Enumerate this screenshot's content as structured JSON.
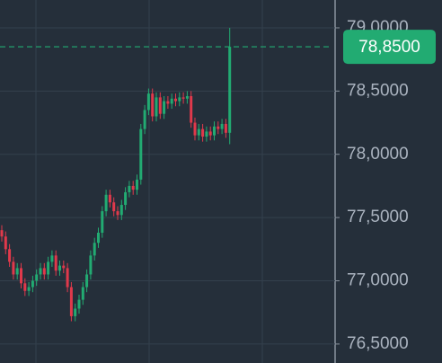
{
  "chart_data": {
    "type": "candlestick",
    "up_color": "#22ab72",
    "down_color": "#e0394b",
    "grid": true,
    "ylim": [
      76.35,
      79.22
    ],
    "yticks": [
      {
        "value": 79.0,
        "label": "79,0000"
      },
      {
        "value": 78.5,
        "label": "78,5000"
      },
      {
        "value": 78.0,
        "label": "78,0000"
      },
      {
        "value": 77.5,
        "label": "77,5000"
      },
      {
        "value": 77.0,
        "label": "77,0000"
      },
      {
        "value": 76.5,
        "label": "76,5000"
      }
    ],
    "last_price": {
      "value": 78.85,
      "label": "78,8500"
    },
    "open": [
      77.4,
      77.35,
      77.25,
      77.15,
      77.05,
      77.1,
      76.98,
      76.92,
      76.95,
      77.0,
      77.05,
      77.1,
      77.05,
      77.15,
      77.2,
      77.08,
      77.12,
      77.1,
      76.95,
      76.72,
      76.78,
      76.85,
      76.95,
      77.05,
      77.2,
      77.3,
      77.38,
      77.55,
      77.68,
      77.62,
      77.55,
      77.52,
      77.6,
      77.7,
      77.75,
      77.72,
      77.8,
      78.2,
      78.35,
      78.48,
      78.3,
      78.45,
      78.32,
      78.42,
      78.4,
      78.44,
      78.42,
      78.45,
      78.44,
      78.46,
      78.25,
      78.15,
      78.2,
      78.14,
      78.18,
      78.15,
      78.22,
      78.2,
      78.24,
      78.17
    ],
    "high": [
      77.44,
      77.39,
      77.29,
      77.19,
      77.14,
      77.14,
      77.02,
      76.99,
      77.04,
      77.09,
      77.14,
      77.14,
      77.19,
      77.24,
      77.24,
      77.16,
      77.16,
      77.14,
      76.99,
      76.82,
      76.89,
      76.99,
      77.09,
      77.24,
      77.34,
      77.42,
      77.59,
      77.72,
      77.72,
      77.66,
      77.59,
      77.64,
      77.74,
      77.79,
      77.79,
      77.84,
      78.24,
      78.39,
      78.52,
      78.52,
      78.49,
      78.49,
      78.46,
      78.46,
      78.48,
      78.48,
      78.49,
      78.49,
      78.5,
      78.5,
      78.29,
      78.24,
      78.24,
      78.22,
      78.22,
      78.26,
      78.26,
      78.28,
      78.28,
      79.0
    ],
    "low": [
      77.31,
      77.21,
      77.11,
      77.01,
      77.01,
      76.94,
      76.88,
      76.88,
      76.91,
      76.96,
      77.01,
      77.01,
      77.01,
      77.11,
      77.04,
      77.04,
      77.06,
      76.91,
      76.68,
      76.68,
      76.74,
      76.81,
      76.91,
      77.01,
      77.16,
      77.26,
      77.34,
      77.51,
      77.58,
      77.51,
      77.48,
      77.48,
      77.56,
      77.66,
      77.68,
      77.68,
      77.76,
      78.16,
      78.31,
      78.26,
      78.26,
      78.28,
      78.28,
      78.36,
      78.36,
      78.38,
      78.38,
      78.4,
      78.4,
      78.21,
      78.11,
      78.11,
      78.1,
      78.1,
      78.11,
      78.11,
      78.16,
      78.16,
      78.13,
      78.08
    ],
    "close": [
      77.35,
      77.25,
      77.15,
      77.05,
      77.1,
      76.98,
      76.92,
      76.95,
      77.0,
      77.05,
      77.1,
      77.05,
      77.15,
      77.2,
      77.08,
      77.12,
      77.1,
      76.95,
      76.72,
      76.78,
      76.85,
      76.95,
      77.05,
      77.2,
      77.3,
      77.38,
      77.55,
      77.68,
      77.62,
      77.55,
      77.52,
      77.6,
      77.7,
      77.75,
      77.72,
      77.8,
      78.2,
      78.35,
      78.48,
      78.3,
      78.45,
      78.32,
      78.42,
      78.4,
      78.44,
      78.42,
      78.45,
      78.44,
      78.46,
      78.25,
      78.15,
      78.2,
      78.14,
      78.18,
      78.15,
      78.22,
      78.2,
      78.24,
      78.17,
      78.85
    ]
  }
}
